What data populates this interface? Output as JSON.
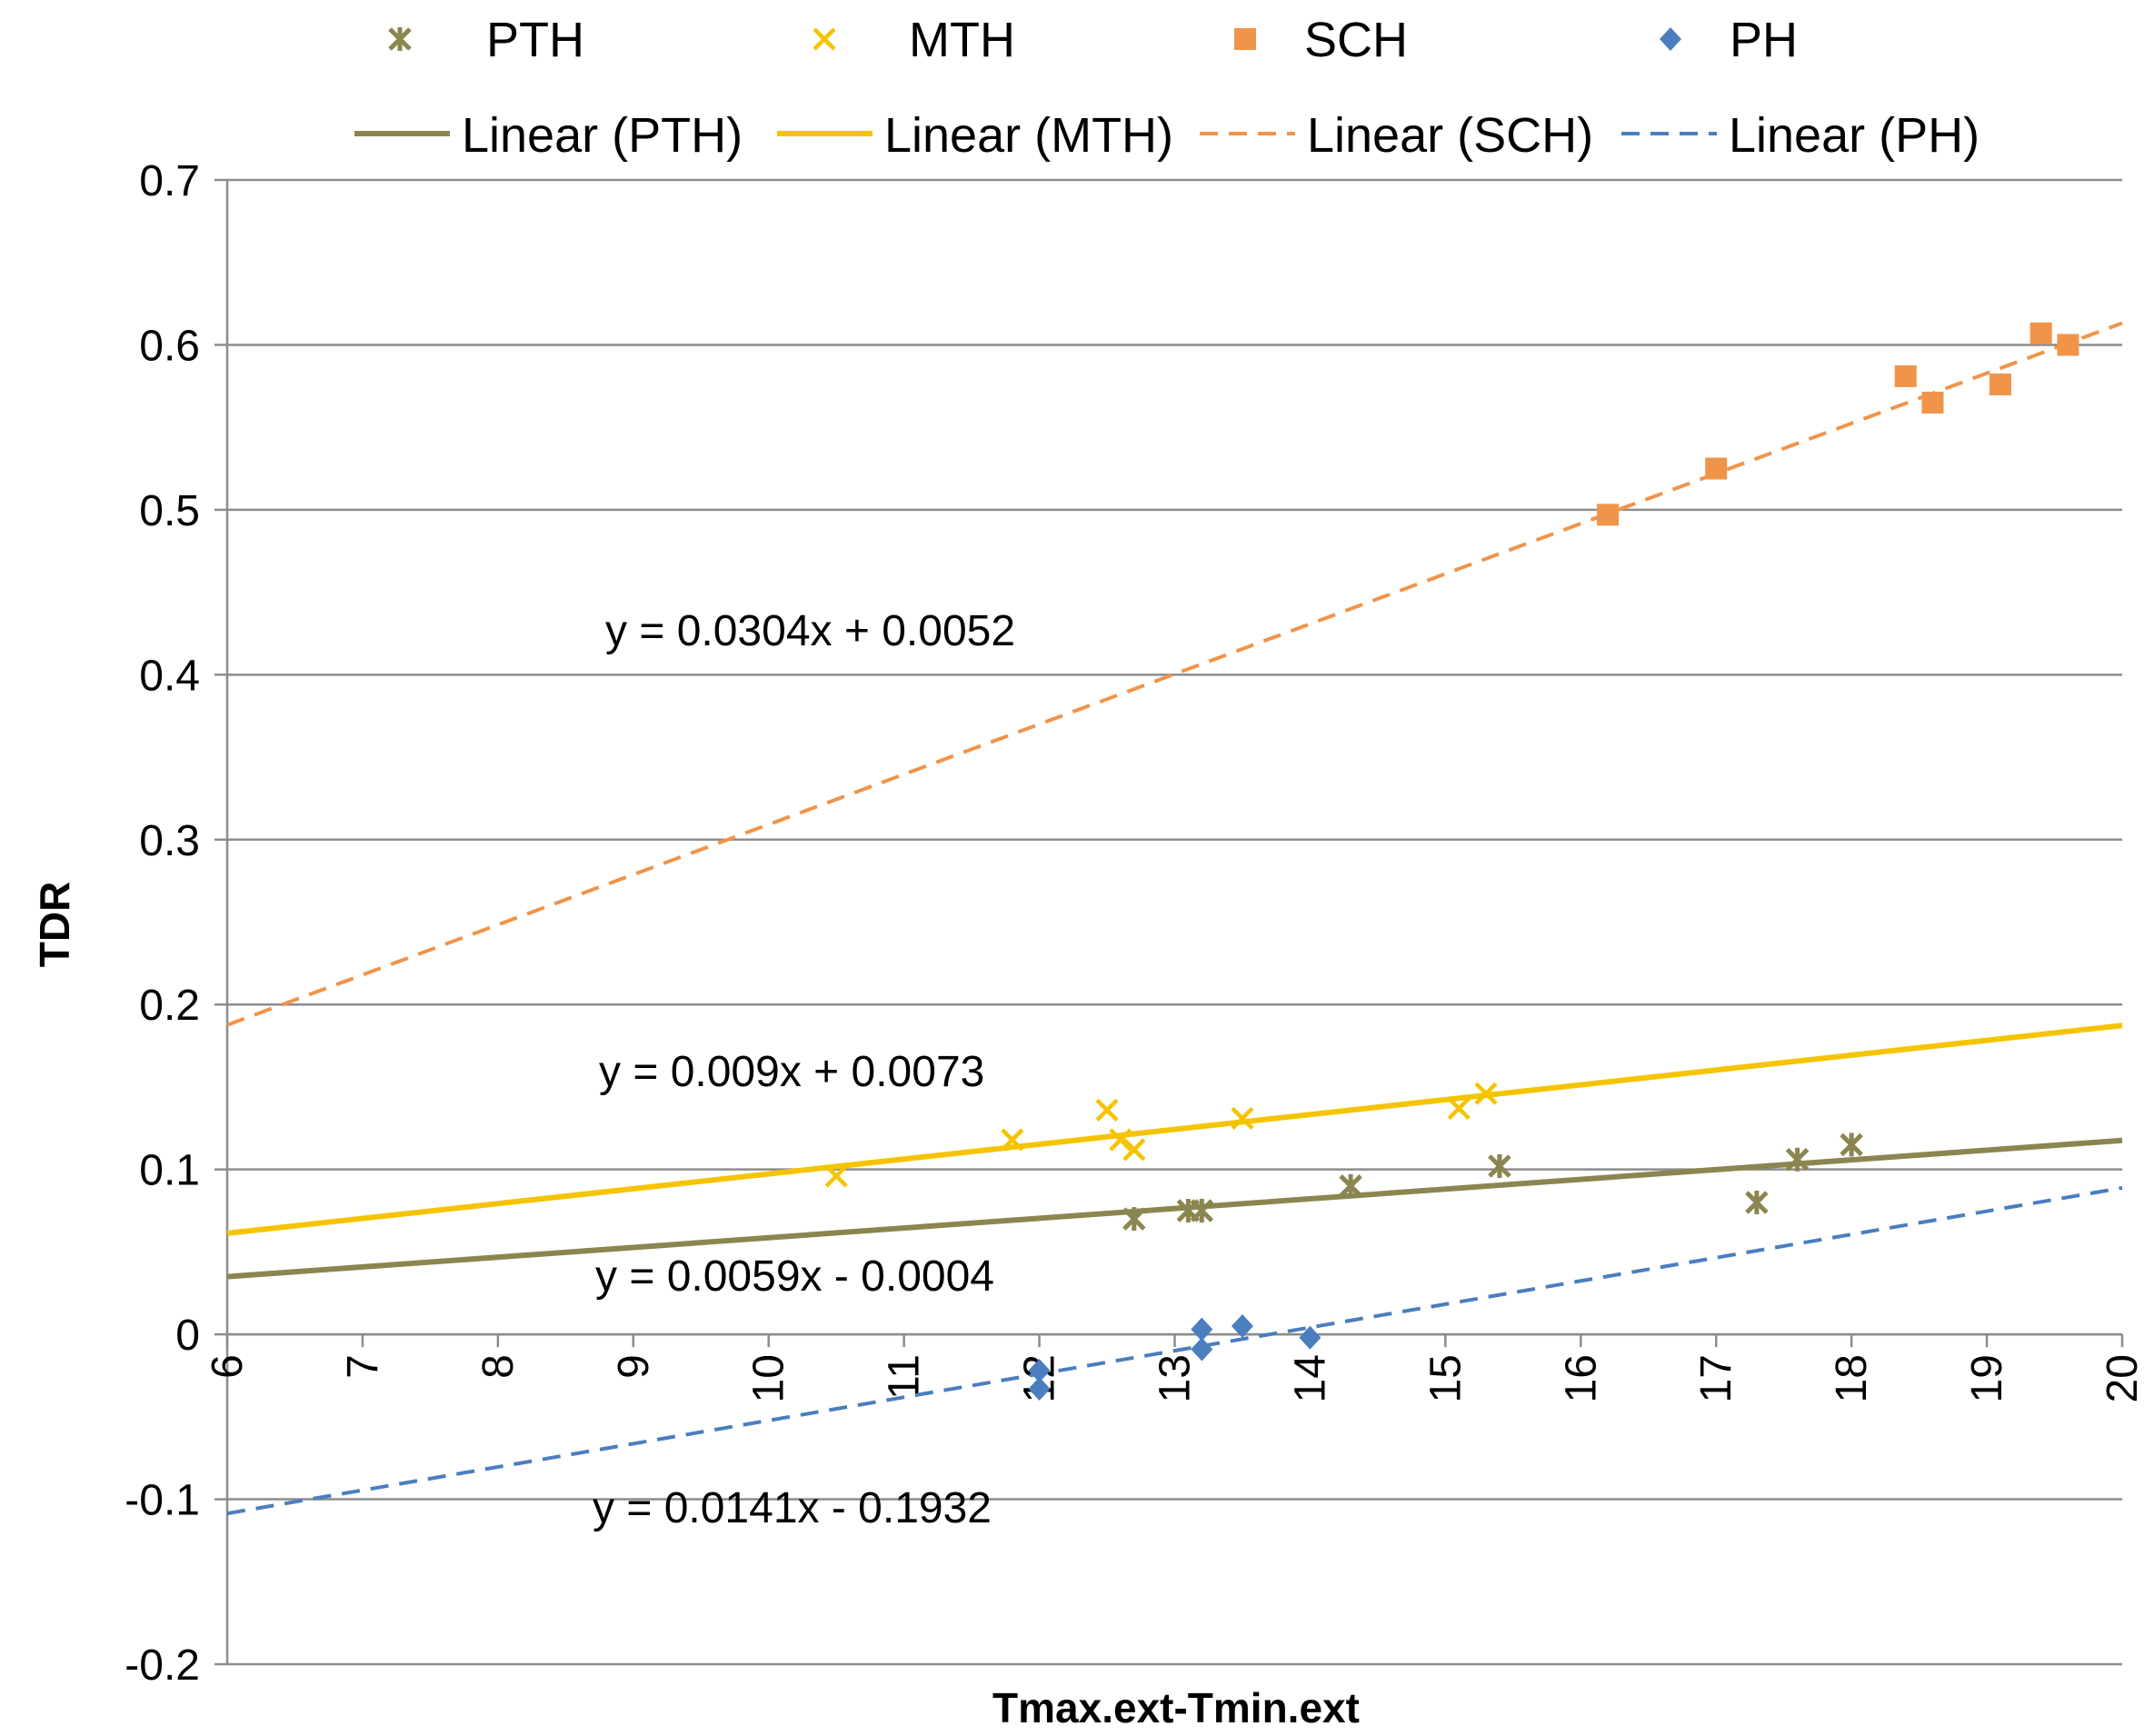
{
  "chart_data": {
    "type": "scatter",
    "title": "",
    "xlabel": "Tmax.ext-Tmin.ext",
    "ylabel": "TDR",
    "xlim": [
      6,
      20
    ],
    "ylim": [
      -0.2,
      0.7
    ],
    "xticks": [
      6,
      7,
      8,
      9,
      10,
      11,
      12,
      13,
      14,
      15,
      16,
      17,
      18,
      19,
      20
    ],
    "yticks": [
      -0.2,
      -0.1,
      0,
      0.1,
      0.2,
      0.3,
      0.4,
      0.5,
      0.6,
      0.7
    ],
    "xtick_labels": [
      "6",
      "7",
      "8",
      "9",
      "10",
      "11",
      "12",
      "13",
      "14",
      "15",
      "16",
      "17",
      "18",
      "19",
      "20"
    ],
    "ytick_labels": [
      "-0.2",
      "-0.1",
      "0",
      "0.1",
      "0.2",
      "0.3",
      "0.4",
      "0.5",
      "0.6",
      "0.7"
    ],
    "grid": "horizontal",
    "legend_position": "top",
    "series": [
      {
        "name": "PTH",
        "marker": "asterisk",
        "color": "#8b8650",
        "points": [
          [
            12.7,
            0.07
          ],
          [
            13.1,
            0.075
          ],
          [
            13.2,
            0.075
          ],
          [
            14.3,
            0.09
          ],
          [
            15.4,
            0.102
          ],
          [
            17.3,
            0.08
          ],
          [
            17.6,
            0.106
          ],
          [
            18.0,
            0.115
          ]
        ],
        "trend_name": "Linear (PTH)",
        "trend_slope": 0.0059,
        "trend_intercept": -0.0004,
        "trend_style": "solid",
        "trend_color": "#8b8650",
        "equation": "y = 0.0059x - 0.0004"
      },
      {
        "name": "MTH",
        "marker": "x",
        "color": "#f5c400",
        "points": [
          [
            10.5,
            0.096
          ],
          [
            11.8,
            0.118
          ],
          [
            12.5,
            0.136
          ],
          [
            12.6,
            0.118
          ],
          [
            12.7,
            0.112
          ],
          [
            13.5,
            0.131
          ],
          [
            15.1,
            0.137
          ],
          [
            15.3,
            0.146
          ]
        ],
        "trend_name": "Linear (MTH)",
        "trend_slope": 0.009,
        "trend_intercept": 0.0073,
        "trend_style": "solid",
        "trend_color": "#f5c400",
        "equation": "y = 0.009x + 0.0073"
      },
      {
        "name": "SCH",
        "marker": "square",
        "color": "#f0944a",
        "points": [
          [
            16.2,
            0.497
          ],
          [
            17.0,
            0.525
          ],
          [
            18.4,
            0.581
          ],
          [
            18.6,
            0.565
          ],
          [
            19.1,
            0.576
          ],
          [
            19.4,
            0.607
          ],
          [
            19.6,
            0.6
          ]
        ],
        "trend_name": "Linear (SCH)",
        "trend_slope": 0.0304,
        "trend_intercept": 0.0052,
        "trend_style": "dashed",
        "trend_color": "#f0944a",
        "equation": "y = 0.0304x + 0.0052"
      },
      {
        "name": "PH",
        "marker": "diamond",
        "color": "#4a7ebf",
        "points": [
          [
            12.0,
            -0.022
          ],
          [
            12.0,
            -0.033
          ],
          [
            13.2,
            -0.009
          ],
          [
            13.2,
            0.003
          ],
          [
            13.5,
            0.005
          ],
          [
            14.0,
            -0.002
          ]
        ],
        "trend_name": "Linear (PH)",
        "trend_slope": 0.0141,
        "trend_intercept": -0.1932,
        "trend_style": "dashed",
        "trend_color": "#4a7ebf",
        "equation": "y = 0.0141x - 0.1932"
      }
    ]
  }
}
